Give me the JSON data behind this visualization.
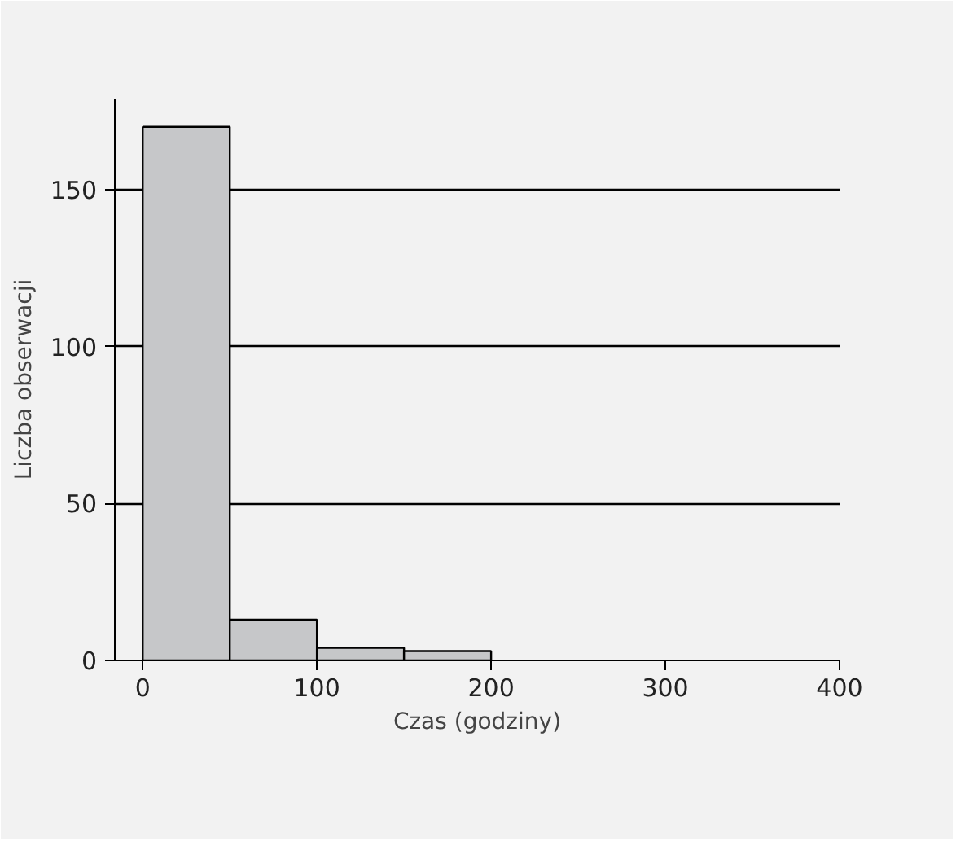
{
  "chart_data": {
    "type": "histogram",
    "xlabel": "Czas (godziny)",
    "ylabel": "Liczba obserwacji",
    "bins": [
      0,
      50,
      100,
      150,
      200
    ],
    "values": [
      170,
      13,
      4,
      3
    ],
    "color": "#c6c7c9",
    "xlim": [
      -16,
      400
    ],
    "xticks": [
      0,
      100,
      200,
      300,
      400
    ],
    "ylim": [
      0,
      179
    ],
    "yticks": [
      0,
      50,
      100,
      150
    ],
    "grid": "y"
  }
}
